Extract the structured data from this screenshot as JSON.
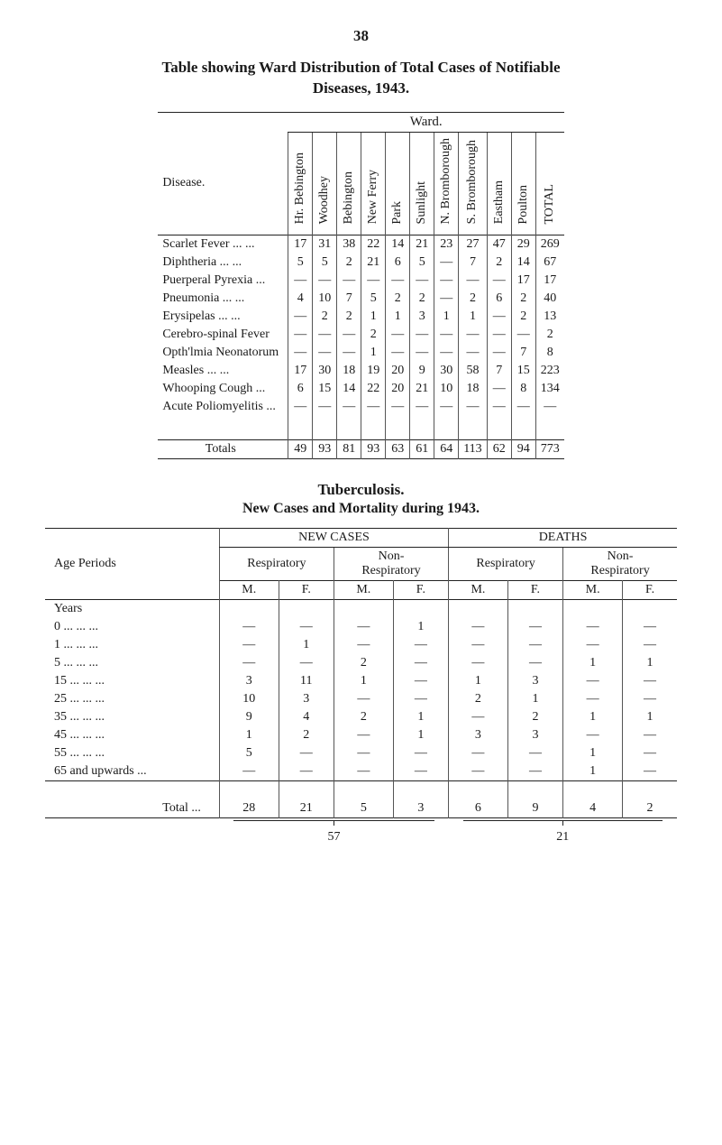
{
  "page_number": "38",
  "title_line1": "Table showing Ward Distribution of Total Cases of Notifiable",
  "title_line2": "Diseases, 1943.",
  "ward_super": "Ward.",
  "ward": {
    "row_label": "Disease.",
    "cols": [
      "Hr. Bebington",
      "Woodhey",
      "Bebington",
      "New Ferry",
      "Park",
      "Sunlight",
      "N. Bromborough",
      "S. Bromborough",
      "Eastham",
      "Poulton",
      "TOTAL"
    ],
    "rows": [
      {
        "name": "Scarlet Fever ...   ...",
        "v": [
          "17",
          "31",
          "38",
          "22",
          "14",
          "21",
          "23",
          "27",
          "47",
          "29",
          "269"
        ]
      },
      {
        "name": "Diphtheria      ...   ...",
        "v": [
          "5",
          "5",
          "2",
          "21",
          "6",
          "5",
          "—",
          "7",
          "2",
          "14",
          "67"
        ]
      },
      {
        "name": "Puerperal Pyrexia  ...",
        "v": [
          "—",
          "—",
          "—",
          "—",
          "—",
          "—",
          "—",
          "—",
          "—",
          "17",
          "17"
        ]
      },
      {
        "name": "Pneumonia     ...   ...",
        "v": [
          "4",
          "10",
          "7",
          "5",
          "2",
          "2",
          "—",
          "2",
          "6",
          "2",
          "40"
        ]
      },
      {
        "name": "Erysipelas      ...   ...",
        "v": [
          "—",
          "2",
          "2",
          "1",
          "1",
          "3",
          "1",
          "1",
          "—",
          "2",
          "13"
        ]
      },
      {
        "name": "Cerebro-spinal Fever",
        "v": [
          "—",
          "—",
          "—",
          "2",
          "—",
          "—",
          "—",
          "—",
          "—",
          "—",
          "2"
        ]
      },
      {
        "name": "Opth'lmia Neonatorum",
        "v": [
          "—",
          "—",
          "—",
          "1",
          "—",
          "—",
          "—",
          "—",
          "—",
          "7",
          "8"
        ]
      },
      {
        "name": "Measles          ...   ...",
        "v": [
          "17",
          "30",
          "18",
          "19",
          "20",
          "9",
          "30",
          "58",
          "7",
          "15",
          "223"
        ]
      },
      {
        "name": "Whooping Cough   ...",
        "v": [
          "6",
          "15",
          "14",
          "22",
          "20",
          "21",
          "10",
          "18",
          "—",
          "8",
          "134"
        ]
      },
      {
        "name": "Acute Poliomyelitis ...",
        "v": [
          "—",
          "—",
          "—",
          "—",
          "—",
          "—",
          "—",
          "—",
          "—",
          "—",
          "—"
        ]
      }
    ],
    "totals_label": "Totals",
    "totals": [
      "49",
      "93",
      "81",
      "93",
      "63",
      "61",
      "64",
      "113",
      "62",
      "94",
      "773"
    ]
  },
  "tb_title": "Tuberculosis.",
  "tb_sub": "New Cases and Mortality during 1943.",
  "tb": {
    "age_label": "Age Periods",
    "new_cases": "NEW CASES",
    "deaths": "DEATHS",
    "resp": "Respiratory",
    "nonresp": "Non-",
    "nonresp2": "Respiratory",
    "m": "M.",
    "f": "F.",
    "years": "Years",
    "rows": [
      {
        "age": "0      ...   ...   ...",
        "v": [
          "—",
          "—",
          "—",
          "1",
          "—",
          "—",
          "—",
          "—"
        ]
      },
      {
        "age": "1      ...   ...   ...",
        "v": [
          "—",
          "1",
          "—",
          "—",
          "—",
          "—",
          "—",
          "—"
        ]
      },
      {
        "age": "5      ...   ...   ...",
        "v": [
          "—",
          "—",
          "2",
          "—",
          "—",
          "—",
          "1",
          "1"
        ]
      },
      {
        "age": "15     ...   ...   ...",
        "v": [
          "3",
          "11",
          "1",
          "—",
          "1",
          "3",
          "—",
          "—"
        ]
      },
      {
        "age": "25     ...   ...   ...",
        "v": [
          "10",
          "3",
          "—",
          "—",
          "2",
          "1",
          "—",
          "—"
        ]
      },
      {
        "age": "35     ...   ...   ...",
        "v": [
          "9",
          "4",
          "2",
          "1",
          "—",
          "2",
          "1",
          "1"
        ]
      },
      {
        "age": "45     ...   ...   ...",
        "v": [
          "1",
          "2",
          "—",
          "1",
          "3",
          "3",
          "—",
          "—"
        ]
      },
      {
        "age": "55     ...   ...   ...",
        "v": [
          "5",
          "—",
          "—",
          "—",
          "—",
          "—",
          "1",
          "—"
        ]
      },
      {
        "age": "65 and upwards   ...",
        "v": [
          "—",
          "—",
          "—",
          "—",
          "—",
          "—",
          "1",
          "—"
        ]
      }
    ],
    "total_label": "Total ...",
    "totals": [
      "28",
      "21",
      "5",
      "3",
      "6",
      "9",
      "4",
      "2"
    ],
    "brace_left": "57",
    "brace_right": "21"
  }
}
